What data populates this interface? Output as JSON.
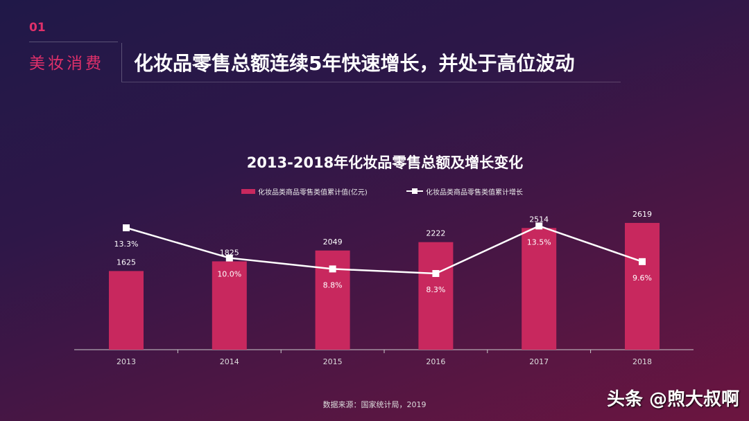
{
  "header": {
    "number": "01",
    "section": "美妆消费",
    "headline": "化妆品零售总额连续5年快速增长，并处于高位波动"
  },
  "chart_data": {
    "type": "bar+line",
    "title": "2013-2018年化妆品零售总额及增长变化",
    "categories": [
      "2013",
      "2014",
      "2015",
      "2016",
      "2017",
      "2018"
    ],
    "series": [
      {
        "name": "化妆品类商品零售类值累计值(亿元)",
        "type": "bar",
        "values": [
          1625,
          1825,
          2049,
          2222,
          2514,
          2619
        ],
        "labels": [
          "1625",
          "1825",
          "2049",
          "2222",
          "2514",
          "2619"
        ],
        "color": "#c8285e"
      },
      {
        "name": "化妆品类商品零售类值累计增长",
        "type": "line",
        "values": [
          13.3,
          10.0,
          8.8,
          8.3,
          13.5,
          9.6
        ],
        "labels": [
          "13.3%",
          "10.0%",
          "8.8%",
          "8.3%",
          "13.5%",
          "9.6%"
        ],
        "color": "#ffffff"
      }
    ],
    "legend": "top",
    "grid": false
  },
  "footer": {
    "source": "数据来源：国家统计局，2019",
    "watermark": "头条 @煦大叔啊"
  }
}
